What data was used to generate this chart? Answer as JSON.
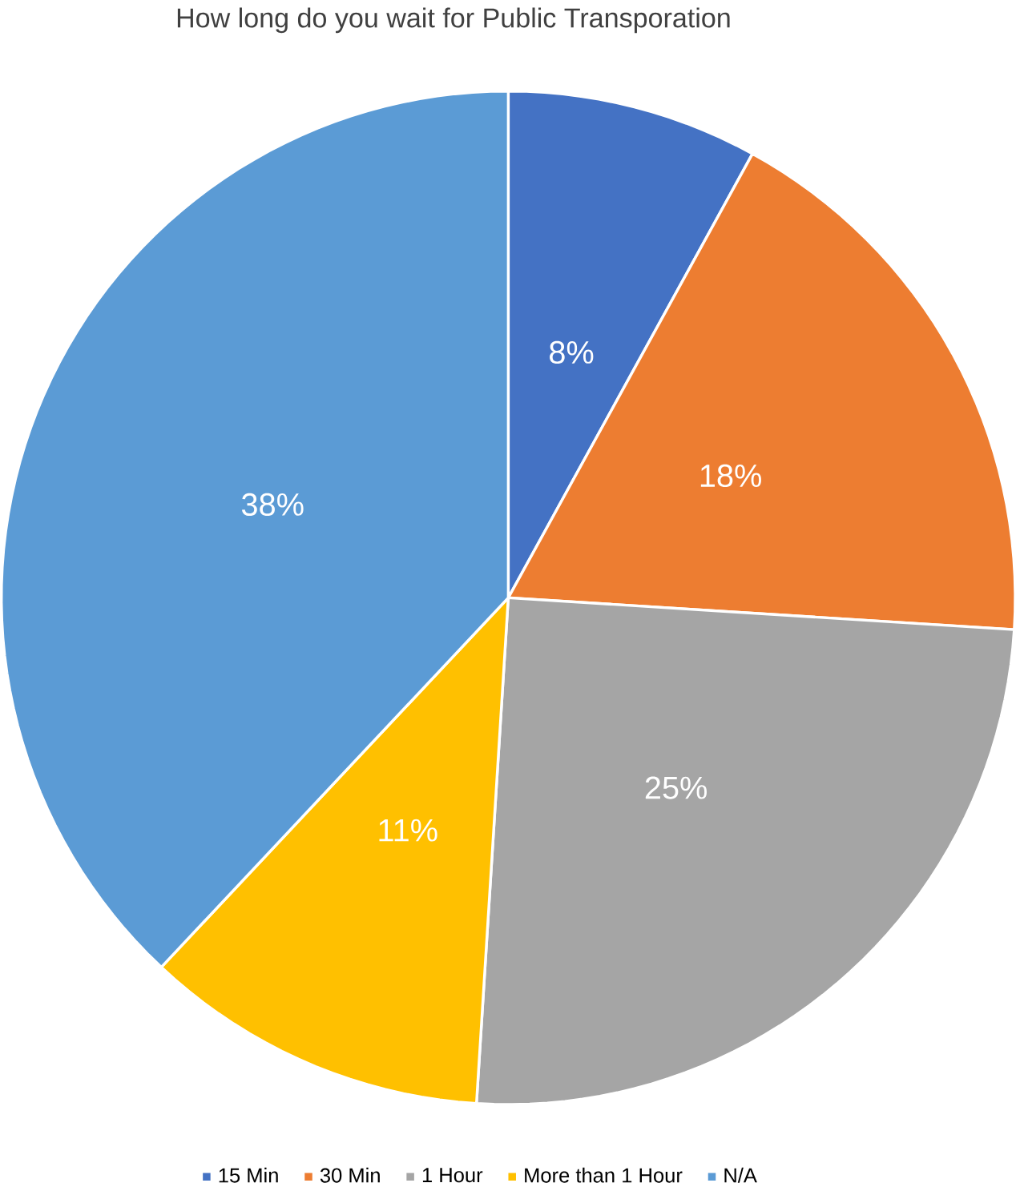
{
  "chart_data": {
    "type": "pie",
    "title": "How long do you wait for Public Transporation",
    "categories": [
      "15 Min",
      "30 Min",
      "1 Hour",
      "More than 1 Hour",
      "N/A"
    ],
    "values": [
      8,
      18,
      25,
      11,
      38
    ],
    "value_labels": [
      "8%",
      "18%",
      "25%",
      "11%",
      "38%"
    ],
    "colors": [
      "#4472c4",
      "#ed7d31",
      "#a5a5a5",
      "#ffc000",
      "#5b9bd5"
    ],
    "legend": "bottom"
  }
}
